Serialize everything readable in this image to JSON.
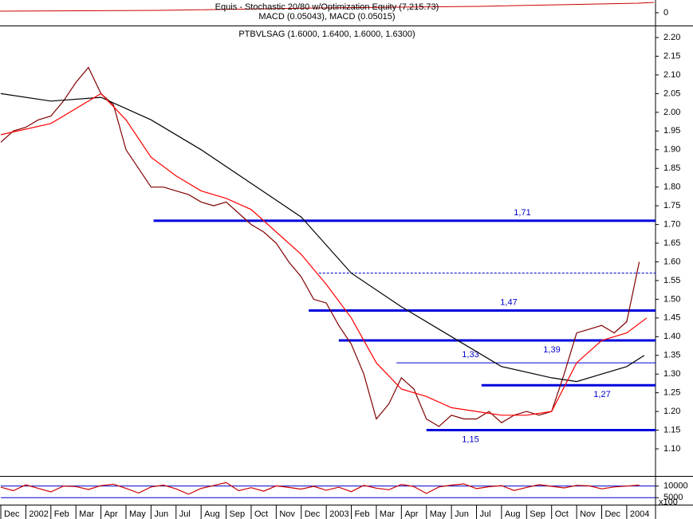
{
  "chart_data": [
    {
      "type": "line",
      "title": "Equis - Stochastic 20/80 w/Optimization Equity (7,215.73)",
      "subtitle": "MACD (0.05043), MACD (0.05015)",
      "ylim": [
        -1,
        1
      ],
      "yticks": [
        0
      ],
      "series": []
    },
    {
      "type": "line",
      "title": "PTBVLSAG (1.6000, 1.6400, 1.6000, 1.6300)",
      "xlim": [
        0,
        26.15
      ],
      "ylim": [
        1.0275,
        2.23
      ],
      "yticks": [
        {
          "value": 2.2,
          "label": "2.20"
        },
        2.15,
        {
          "value": 2.1,
          "label": "2.10"
        },
        2.05,
        {
          "value": 2.0,
          "label": "2.00"
        },
        1.95,
        {
          "value": 1.9,
          "label": "1.90"
        },
        1.85,
        {
          "value": 1.8,
          "label": "1.80"
        },
        1.75,
        {
          "value": 1.7,
          "label": "1.70"
        },
        1.65,
        {
          "value": 1.6,
          "label": "1.60"
        },
        1.55,
        {
          "value": 1.5,
          "label": "1.50"
        },
        1.45,
        {
          "value": 1.4,
          "label": "1.40"
        },
        1.35,
        {
          "value": 1.3,
          "label": "1.30"
        },
        1.25,
        {
          "value": 1.2,
          "label": "1.20"
        },
        1.15,
        {
          "value": 1.1,
          "label": "1.10"
        }
      ],
      "series": [
        {
          "color": "#800000",
          "x": [
            0,
            0.5,
            1,
            1.5,
            2,
            2.5,
            3,
            3.5,
            4,
            4.5,
            5,
            5.5,
            6,
            6.5,
            7,
            7.5,
            8,
            8.5,
            9,
            9.5,
            10,
            10.5,
            11,
            11.5,
            12,
            12.5,
            13,
            13.5,
            14,
            14.5,
            15,
            15.5,
            16,
            16.5,
            17,
            17.5,
            18,
            18.5,
            19,
            19.5,
            20,
            20.5,
            21,
            21.5,
            22,
            22.5,
            23,
            23.5,
            24,
            24.5,
            25,
            25.5
          ],
          "values": [
            1.92,
            1.95,
            1.96,
            1.98,
            1.99,
            2.03,
            2.08,
            2.12,
            2.05,
            2.02,
            1.9,
            1.85,
            1.8,
            1.8,
            1.79,
            1.78,
            1.76,
            1.75,
            1.76,
            1.73,
            1.7,
            1.68,
            1.65,
            1.6,
            1.56,
            1.5,
            1.49,
            1.43,
            1.38,
            1.3,
            1.18,
            1.22,
            1.29,
            1.26,
            1.18,
            1.16,
            1.19,
            1.18,
            1.18,
            1.2,
            1.17,
            1.19,
            1.2,
            1.19,
            1.2,
            1.3,
            1.41,
            1.42,
            1.43,
            1.41,
            1.44,
            1.6
          ]
        },
        {
          "color": "#000000",
          "x": [
            0,
            2,
            4,
            6,
            8,
            10,
            12,
            14,
            16,
            18,
            20,
            22,
            23,
            24,
            25,
            25.7
          ],
          "values": [
            2.05,
            2.03,
            2.04,
            1.98,
            1.9,
            1.81,
            1.72,
            1.57,
            1.48,
            1.4,
            1.32,
            1.29,
            1.28,
            1.3,
            1.32,
            1.35
          ]
        },
        {
          "color": "#ff0000",
          "x": [
            0,
            2,
            4,
            5,
            6,
            7,
            8,
            9,
            10,
            11,
            12,
            13,
            14,
            15,
            16,
            17,
            18,
            19,
            20,
            21,
            22,
            23,
            24,
            25,
            25.8
          ],
          "values": [
            1.94,
            1.97,
            2.05,
            1.98,
            1.88,
            1.83,
            1.79,
            1.77,
            1.74,
            1.68,
            1.62,
            1.54,
            1.45,
            1.33,
            1.26,
            1.24,
            1.21,
            1.2,
            1.19,
            1.19,
            1.2,
            1.33,
            1.39,
            1.41,
            1.45
          ]
        }
      ],
      "levels": [
        {
          "value": 1.71,
          "label": "1,71",
          "start": 6.1,
          "style": "thick"
        },
        {
          "value": 1.57,
          "start": 12.7,
          "style": "dashed"
        },
        {
          "value": 1.47,
          "label": "1,47",
          "start": 12.3,
          "style": "thick"
        },
        {
          "value": 1.39,
          "label": "1,39",
          "start": 13.5,
          "style": "thick"
        },
        {
          "value": 1.33,
          "label": "1,33",
          "start": 15.8,
          "style": "thin"
        },
        {
          "value": 1.27,
          "label": "1,27",
          "start": 19.2,
          "style": "thick"
        },
        {
          "value": 1.15,
          "label": "1,15",
          "start": 17.0,
          "style": "thick"
        }
      ]
    },
    {
      "type": "line",
      "xlim": [
        0,
        26.15
      ],
      "ylim": [
        2000,
        14000
      ],
      "yticks": [
        10000,
        5000
      ],
      "unit_label": "x100",
      "xticks": [
        {
          "value": 0,
          "label": "Dec"
        },
        {
          "value": 1,
          "label": "2002"
        },
        {
          "value": 2,
          "label": "Feb"
        },
        {
          "value": 3,
          "label": "Mar"
        },
        {
          "value": 4,
          "label": "Apr"
        },
        {
          "value": 5,
          "label": "May"
        },
        {
          "value": 6,
          "label": "Jun"
        },
        {
          "value": 7,
          "label": "Jul"
        },
        {
          "value": 8,
          "label": "Aug"
        },
        {
          "value": 9,
          "label": "Sep"
        },
        {
          "value": 10,
          "label": "Oct"
        },
        {
          "value": 11,
          "label": "Nov"
        },
        {
          "value": 12,
          "label": "Dec"
        },
        {
          "value": 13,
          "label": "2003"
        },
        {
          "value": 14,
          "label": "Feb"
        },
        {
          "value": 15,
          "label": "Mar"
        },
        {
          "value": 16,
          "label": "Apr"
        },
        {
          "value": 17,
          "label": "May"
        },
        {
          "value": 18,
          "label": "Jun"
        },
        {
          "value": 19,
          "label": "Jul"
        },
        {
          "value": 20,
          "label": "Aug"
        },
        {
          "value": 21,
          "label": "Sep"
        },
        {
          "value": 22,
          "label": "Oct"
        },
        {
          "value": 23,
          "label": "Nov"
        },
        {
          "value": 24,
          "label": "Dec"
        },
        {
          "value": 25,
          "label": "2004"
        }
      ],
      "series": [
        {
          "color": "#cc0000",
          "x": [
            0,
            0.5,
            1,
            1.5,
            2,
            2.5,
            3,
            3.5,
            4,
            4.5,
            5,
            5.5,
            6,
            6.5,
            7,
            7.5,
            8,
            8.5,
            9,
            9.5,
            10,
            10.5,
            11,
            11.5,
            12,
            12.5,
            13,
            13.5,
            14,
            14.5,
            15,
            15.5,
            16,
            16.5,
            17,
            17.5,
            18,
            18.5,
            19,
            19.5,
            20,
            20.5,
            21,
            21.5,
            22,
            22.5,
            23,
            23.5,
            24,
            24.5,
            25,
            25.5
          ],
          "values": [
            9500,
            8000,
            10500,
            9000,
            7500,
            10000,
            9800,
            8500,
            10200,
            10800,
            9000,
            7000,
            9600,
            10400,
            8800,
            6500,
            9000,
            10200,
            11500,
            8000,
            9300,
            7800,
            10100,
            9400,
            8700,
            9900,
            8200,
            9500,
            7600,
            10300,
            9100,
            8400,
            10700,
            9800,
            6800,
            9600,
            10400,
            10900,
            8900,
            9700,
            10200,
            8100,
            9400,
            10600,
            9900,
            9200,
            10300,
            10100,
            8800,
            9600,
            10000,
            10400
          ]
        }
      ]
    }
  ]
}
